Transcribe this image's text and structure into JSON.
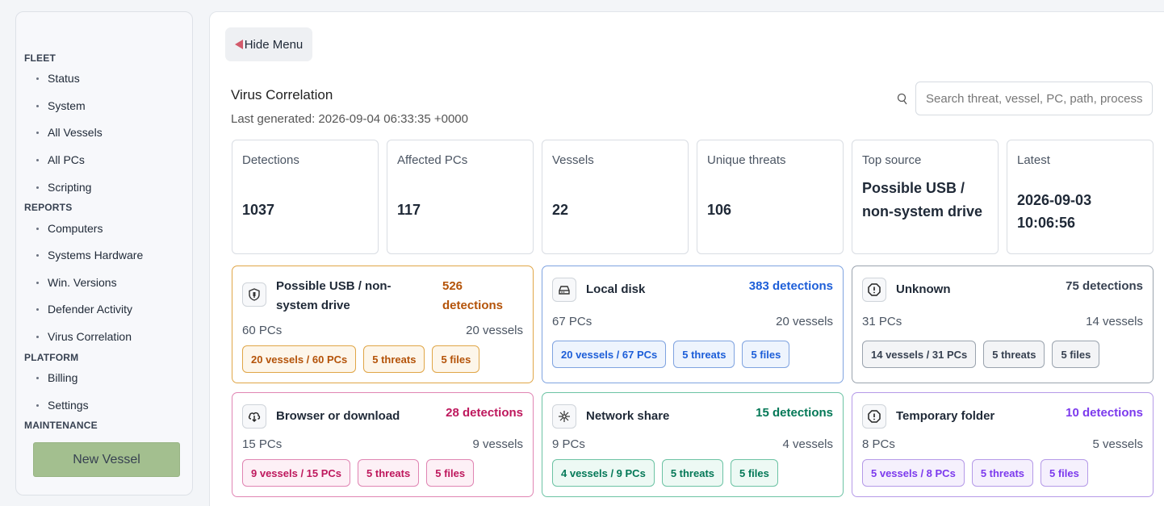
{
  "sidebar": {
    "sections": [
      {
        "title": "FLEET",
        "items": [
          "Status",
          "System",
          "All Vessels",
          "All PCs",
          "Scripting"
        ]
      },
      {
        "title": "REPORTS",
        "items": [
          "Computers",
          "Systems Hardware",
          "Win. Versions",
          "Defender Activity",
          "Virus Correlation"
        ]
      },
      {
        "title": "PLATFORM",
        "items": [
          "Billing",
          "Settings"
        ]
      },
      {
        "title": "MAINTENANCE",
        "items": []
      }
    ],
    "new_vessel_label": "New Vessel",
    "new_vessel_color": "#a3bf8f"
  },
  "main": {
    "hide_menu_label": "Hide Menu",
    "title": "Virus Correlation",
    "last_generated": "Last generated: 2026-09-04 06:33:35 +0000",
    "search_placeholder": "Search threat, vessel, PC, path, process",
    "stats": [
      {
        "label": "Detections",
        "value": "1037"
      },
      {
        "label": "Affected PCs",
        "value": "117"
      },
      {
        "label": "Vessels",
        "value": "22"
      },
      {
        "label": "Unique threats",
        "value": "106"
      },
      {
        "label": "Top source",
        "value": "Possible USB / non-system drive"
      },
      {
        "label": "Latest",
        "value": "2026-09-03 10:06:56"
      }
    ],
    "sources": [
      {
        "name": "Possible USB / non-system drive",
        "icon": "usb-shield-icon",
        "count": "526 detections",
        "pcs": "60 PCs",
        "vessels": "20 vessels",
        "chips": [
          "20 vessels / 60 PCs",
          "5 threats",
          "5 files"
        ],
        "color": "#b45309"
      },
      {
        "name": "Local disk",
        "icon": "hard-drive-icon",
        "count": "383 detections",
        "pcs": "67 PCs",
        "vessels": "20 vessels",
        "chips": [
          "20 vessels / 67 PCs",
          "5 threats",
          "5 files"
        ],
        "color": "#1d5ed8"
      },
      {
        "name": "Unknown",
        "icon": "alert-octagon-icon",
        "count": "75 detections",
        "pcs": "31 PCs",
        "vessels": "14 vessels",
        "chips": [
          "14 vessels / 31 PCs",
          "5 threats",
          "5 files"
        ],
        "color": "#374151"
      },
      {
        "name": "Browser or download",
        "icon": "cloud-download-icon",
        "count": "28 detections",
        "pcs": "15 PCs",
        "vessels": "9 vessels",
        "chips": [
          "9 vessels / 15 PCs",
          "5 threats",
          "5 files"
        ],
        "color": "#be185d"
      },
      {
        "name": "Network share",
        "icon": "network-icon",
        "count": "15 detections",
        "pcs": "9 PCs",
        "vessels": "4 vessels",
        "chips": [
          "4 vessels / 9 PCs",
          "5 threats",
          "5 files"
        ],
        "color": "#047857"
      },
      {
        "name": "Temporary folder",
        "icon": "alert-octagon-icon",
        "count": "10 detections",
        "pcs": "8 PCs",
        "vessels": "5 vessels",
        "chips": [
          "5 vessels / 8 PCs",
          "5 threats",
          "5 files"
        ],
        "color": "#7c3aed"
      }
    ]
  }
}
